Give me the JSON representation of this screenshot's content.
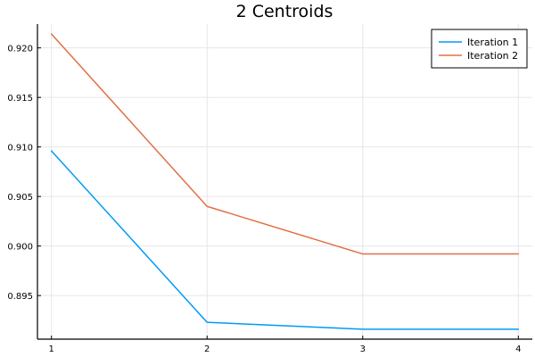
{
  "chart_data": {
    "type": "line",
    "title": "2 Centroids",
    "xlabel": "",
    "ylabel": "",
    "x": [
      1,
      2,
      3,
      4
    ],
    "xlim": [
      0.91,
      4.09
    ],
    "ylim": [
      0.8906,
      0.9224
    ],
    "xticks": [
      1,
      2,
      3,
      4
    ],
    "xtick_labels": [
      "1",
      "2",
      "3",
      "4"
    ],
    "yticks": [
      0.895,
      0.9,
      0.905,
      0.91,
      0.915,
      0.92
    ],
    "ytick_labels": [
      "0.895",
      "0.900",
      "0.905",
      "0.910",
      "0.915",
      "0.920"
    ],
    "grid": true,
    "legend_position": "top-right",
    "series": [
      {
        "name": "Iteration 1",
        "color": "#009AFA",
        "values": [
          0.9096,
          0.8923,
          0.8916,
          0.8916
        ]
      },
      {
        "name": "Iteration 2",
        "color": "#E36F47",
        "values": [
          0.9214,
          0.904,
          0.8992,
          0.8992
        ]
      }
    ]
  }
}
